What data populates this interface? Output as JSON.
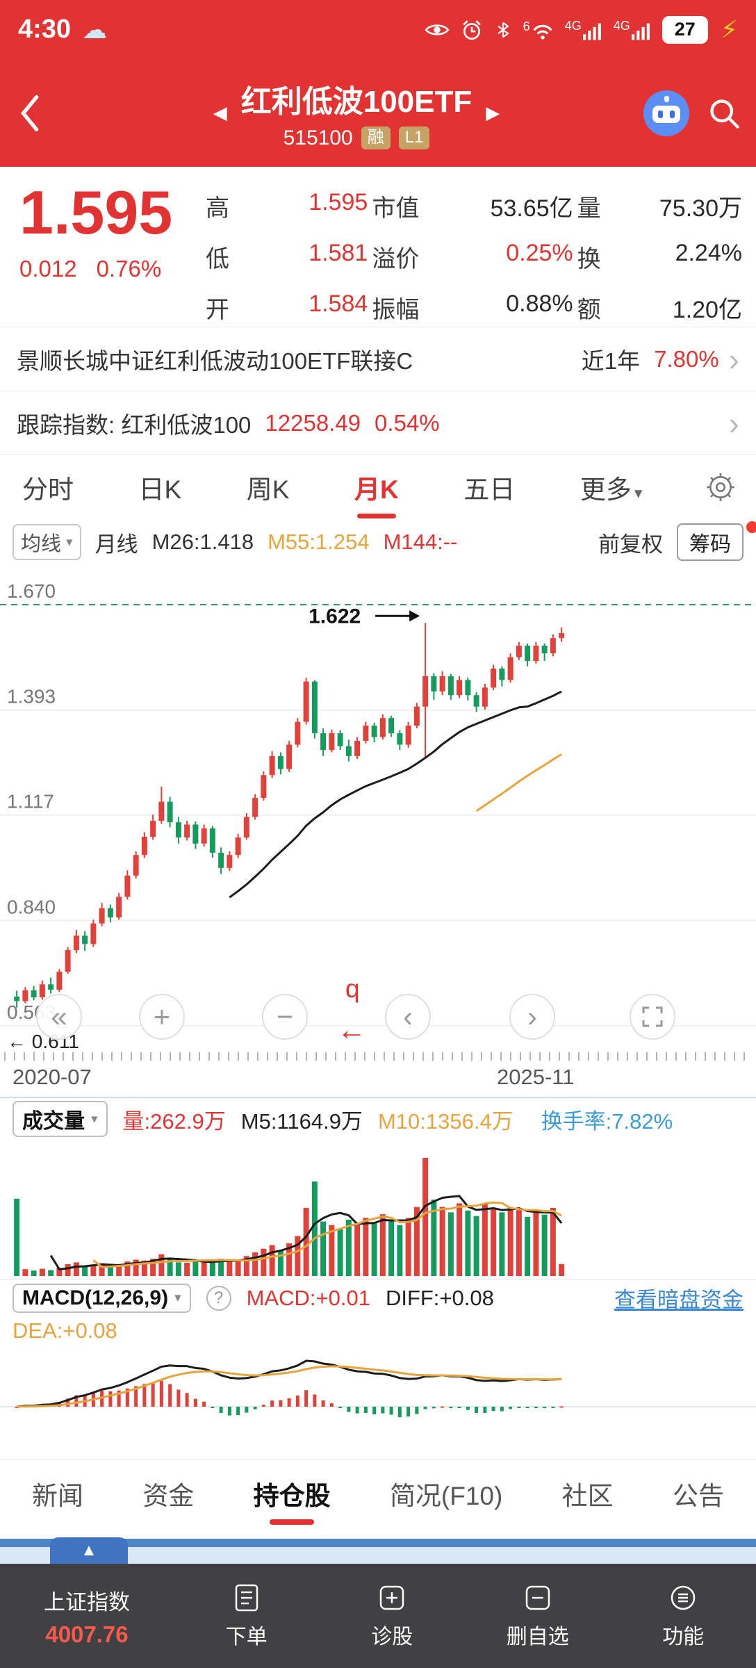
{
  "icons": {
    "weather": "☁",
    "bolt": "⚡",
    "back": "‹",
    "left_tri": "◀",
    "right_tri": "▶",
    "dropdown": "▾",
    "chevron": "›",
    "double_left": "«",
    "plus": "+",
    "minus": "−",
    "prev": "‹",
    "next": "›",
    "q_marker": "q",
    "left_arrow": "←",
    "up_tri": "▲",
    "help": "?"
  },
  "status_bar": {
    "time": "4:30",
    "battery": "27",
    "network1": "4G",
    "network2": "4G",
    "wifi_label": "6"
  },
  "header": {
    "title": "红利低波100ETF",
    "code": "515100",
    "badge_rong": "融",
    "badge_l1": "L1"
  },
  "quote": {
    "price": "1.595",
    "change": "0.012",
    "change_pct": "0.76%",
    "rows": [
      {
        "l1": "高",
        "v1": "1.595",
        "l2": "市值",
        "v2": "53.65亿",
        "l3": "量",
        "v3": "75.30万"
      },
      {
        "l1": "低",
        "v1": "1.581",
        "l2": "溢价",
        "v2": "0.25%",
        "l3": "换",
        "v3": "2.24%"
      },
      {
        "l1": "开",
        "v1": "1.584",
        "l2": "振幅",
        "v2": "0.88%",
        "l3": "额",
        "v3": "1.20亿"
      }
    ]
  },
  "fund_link": {
    "name": "景顺长城中证红利低波动100ETF联接C",
    "period": "近1年",
    "value": "7.80%"
  },
  "index_link": {
    "label": "跟踪指数: 红利低波100",
    "value": "12258.49",
    "pct": "0.54%"
  },
  "period_tabs": {
    "t0": "分时",
    "t1": "日K",
    "t2": "周K",
    "t3": "月K",
    "t4": "五日",
    "t5": "更多"
  },
  "chart_toolbar": {
    "ma_selector": "均线",
    "period_label": "月线",
    "m26": "M26:1.418",
    "m55": "M55:1.254",
    "m144": "M144:--",
    "fuquan": "前复权",
    "chips": "筹码"
  },
  "chart_data": {
    "type": "candlestick",
    "title": "红利低波100ETF 月K 前复权",
    "x_labels": [
      "2020-07",
      "2025-11"
    ],
    "y_ticks": [
      "1.670",
      "1.393",
      "1.117",
      "0.840",
      "0.563"
    ],
    "annotation_high": {
      "label": "1.622",
      "value": 1.622
    },
    "low_marker": {
      "label": "0.611",
      "value": 0.611
    },
    "ma_legend": {
      "m26": 1.418,
      "m55": 1.254,
      "m144": null
    },
    "colors": {
      "up": "#e2413a",
      "down": "#169b5f",
      "ma26": "#1c1c1c",
      "ma55": "#e6a43e",
      "dashed": "#2aa05c"
    },
    "candles": [
      [
        0.64,
        0.655,
        0.611,
        0.628
      ],
      [
        0.628,
        0.665,
        0.622,
        0.656
      ],
      [
        0.656,
        0.668,
        0.63,
        0.638
      ],
      [
        0.638,
        0.682,
        0.632,
        0.672
      ],
      [
        0.672,
        0.69,
        0.648,
        0.658
      ],
      [
        0.658,
        0.712,
        0.652,
        0.705
      ],
      [
        0.705,
        0.77,
        0.7,
        0.762
      ],
      [
        0.762,
        0.815,
        0.754,
        0.8
      ],
      [
        0.8,
        0.812,
        0.76,
        0.778
      ],
      [
        0.778,
        0.842,
        0.77,
        0.832
      ],
      [
        0.832,
        0.886,
        0.825,
        0.872
      ],
      [
        0.872,
        0.882,
        0.835,
        0.848
      ],
      [
        0.848,
        0.912,
        0.842,
        0.902
      ],
      [
        0.902,
        0.972,
        0.895,
        0.958
      ],
      [
        0.958,
        1.022,
        0.95,
        1.012
      ],
      [
        1.012,
        1.072,
        1.004,
        1.06
      ],
      [
        1.06,
        1.118,
        1.052,
        1.102
      ],
      [
        1.102,
        1.192,
        1.094,
        1.152
      ],
      [
        1.152,
        1.165,
        1.085,
        1.098
      ],
      [
        1.098,
        1.112,
        1.042,
        1.058
      ],
      [
        1.058,
        1.102,
        1.05,
        1.092
      ],
      [
        1.092,
        1.1,
        1.028,
        1.042
      ],
      [
        1.042,
        1.092,
        1.034,
        1.082
      ],
      [
        1.082,
        1.088,
        1.005,
        1.018
      ],
      [
        1.018,
        1.032,
        0.962,
        0.978
      ],
      [
        0.978,
        1.022,
        0.97,
        1.012
      ],
      [
        1.012,
        1.068,
        1.004,
        1.058
      ],
      [
        1.058,
        1.122,
        1.052,
        1.112
      ],
      [
        1.112,
        1.172,
        1.105,
        1.162
      ],
      [
        1.162,
        1.232,
        1.155,
        1.222
      ],
      [
        1.222,
        1.285,
        1.214,
        1.272
      ],
      [
        1.272,
        1.282,
        1.224,
        1.238
      ],
      [
        1.238,
        1.312,
        1.23,
        1.302
      ],
      [
        1.302,
        1.372,
        1.295,
        1.362
      ],
      [
        1.362,
        1.478,
        1.355,
        1.468
      ],
      [
        1.468,
        1.472,
        1.318,
        1.332
      ],
      [
        1.332,
        1.345,
        1.272,
        1.288
      ],
      [
        1.288,
        1.342,
        1.282,
        1.332
      ],
      [
        1.332,
        1.34,
        1.288,
        1.298
      ],
      [
        1.298,
        1.315,
        1.258,
        1.272
      ],
      [
        1.272,
        1.322,
        1.264,
        1.312
      ],
      [
        1.312,
        1.362,
        1.305,
        1.352
      ],
      [
        1.352,
        1.36,
        1.308,
        1.322
      ],
      [
        1.322,
        1.382,
        1.315,
        1.372
      ],
      [
        1.372,
        1.378,
        1.322,
        1.332
      ],
      [
        1.332,
        1.34,
        1.288,
        1.302
      ],
      [
        1.302,
        1.362,
        1.294,
        1.352
      ],
      [
        1.352,
        1.412,
        1.345,
        1.402
      ],
      [
        1.402,
        1.622,
        1.268,
        1.482
      ],
      [
        1.482,
        1.49,
        1.42,
        1.442
      ],
      [
        1.442,
        1.495,
        1.432,
        1.482
      ],
      [
        1.482,
        1.488,
        1.42,
        1.432
      ],
      [
        1.432,
        1.482,
        1.424,
        1.472
      ],
      [
        1.472,
        1.478,
        1.418,
        1.432
      ],
      [
        1.432,
        1.44,
        1.388,
        1.402
      ],
      [
        1.402,
        1.462,
        1.394,
        1.452
      ],
      [
        1.452,
        1.512,
        1.445,
        1.502
      ],
      [
        1.502,
        1.508,
        1.455,
        1.472
      ],
      [
        1.472,
        1.542,
        1.465,
        1.532
      ],
      [
        1.532,
        1.572,
        1.524,
        1.562
      ],
      [
        1.562,
        1.568,
        1.508,
        1.522
      ],
      [
        1.522,
        1.572,
        1.515,
        1.562
      ],
      [
        1.562,
        1.568,
        1.522,
        1.542
      ],
      [
        1.542,
        1.592,
        1.534,
        1.582
      ],
      [
        1.582,
        1.61,
        1.572,
        1.595
      ]
    ],
    "volumes": [
      1700,
      150,
      120,
      160,
      130,
      180,
      260,
      300,
      200,
      240,
      280,
      210,
      260,
      320,
      360,
      340,
      380,
      480,
      360,
      300,
      290,
      320,
      300,
      340,
      380,
      320,
      360,
      440,
      520,
      600,
      680,
      560,
      720,
      880,
      1500,
      2080,
      1200,
      1120,
      1040,
      1240,
      1120,
      1280,
      1160,
      1360,
      1200,
      1120,
      1280,
      1520,
      2600,
      1680,
      1520,
      1400,
      1600,
      1440,
      1320,
      1600,
      1500,
      1400,
      1500,
      1450,
      1300,
      1400,
      1350,
      1500,
      263
    ]
  },
  "volume_panel": {
    "title": "成交量",
    "vol": "量:262.9万",
    "m5": "M5:1164.9万",
    "m10": "M10:1356.4万",
    "turnover": "换手率:7.82%"
  },
  "macd_panel": {
    "title": "MACD(12,26,9)",
    "macd": "MACD:+0.01",
    "diff": "DIFF:+0.08",
    "dea": "DEA:+0.08",
    "link": "查看暗盘资金"
  },
  "bottom_tabs": {
    "t0": "新闻",
    "t1": "资金",
    "t2": "持仓股",
    "t3": "简况(F10)",
    "t4": "社区",
    "t5": "公告"
  },
  "bottom_nav": {
    "index_name": "上证指数",
    "index_value": "4007.76",
    "item1": "下单",
    "item2": "诊股",
    "item3": "删自选",
    "item4": "功能"
  }
}
